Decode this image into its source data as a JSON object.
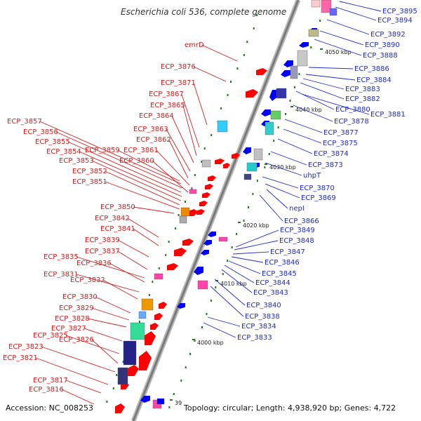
{
  "title": "Escherichia coli 536, complete genome",
  "accession": "Accession: NC_008253",
  "topology": "Topology: circular; Length: 4,938,920 bp; Genes: 4,722",
  "colors": {
    "left_label": "#d62020",
    "right_label": "#1f2bd6",
    "backbone": "#8c8c8c",
    "fwd_gene": "#ff0000",
    "rev_gene": "#0000ff",
    "tick": "#1f7a1f"
  },
  "ticks": [
    "4050 kbp",
    "4040 kbp",
    "4030 kbp",
    "4020 kbp",
    "4010 kbp",
    "4000 kbp",
    "39"
  ],
  "left_labels": [
    "emrD",
    "ECP_3876",
    "ECP_3871",
    "ECP_3867",
    "ECP_3865",
    "ECP_3864",
    "ECP_3863",
    "ECP_3862",
    "ECP_3861",
    "ECP_3860",
    "ECP_3859",
    "ECP_3857",
    "ECP_3856",
    "ECP_3855",
    "ECP_3854",
    "ECP_3853",
    "ECP_3852",
    "ECP_3851",
    "ECP_3850",
    "ECP_3842",
    "ECP_3841",
    "ECP_3839",
    "ECP_3837",
    "ECP_3835",
    "ECP_3836",
    "ECP_3831",
    "ECP_3832",
    "ECP_3830",
    "ECP_3829",
    "ECP_3828",
    "ECP_3827",
    "ECP_3825",
    "ECP_3826",
    "ECP_3823",
    "ECP_3821",
    "ECP_3817",
    "ECP_3816"
  ],
  "right_labels": [
    "ECP_3895",
    "ECP_3894",
    "ECP_3892",
    "ECP_3890",
    "ECP_3888",
    "ECP_3886",
    "ECP_3884",
    "ECP_3883",
    "ECP_3882",
    "ECP_3880",
    "ECP_3881",
    "ECP_3878",
    "ECP_3877",
    "ECP_3875",
    "ECP_3874",
    "ECP_3873",
    "uhpT",
    "ECP_3870",
    "ECP_3869",
    "nepI",
    "ECP_3866",
    "ECP_3849",
    "ECP_3848",
    "ECP_3847",
    "ECP_3846",
    "ECP_3845",
    "ECP_3844",
    "ECP_3843",
    "ECP_3840",
    "ECP_3838",
    "ECP_3834",
    "ECP_3833"
  ]
}
